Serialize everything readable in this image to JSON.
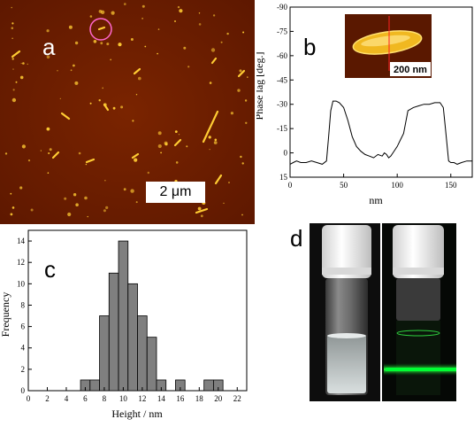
{
  "panels": {
    "a": {
      "letter": "a",
      "scale_bar": "2 μm"
    },
    "b": {
      "letter": "b",
      "inset_scale": "200 nm"
    },
    "c": {
      "letter": "c"
    },
    "d": {
      "letter": "d"
    }
  },
  "chart_data": [
    {
      "panel": "b",
      "type": "line",
      "xlabel": "nm",
      "ylabel": "Phase lag [deg.]",
      "xlim": [
        0,
        170
      ],
      "ylim": [
        15,
        -90
      ],
      "y_inverted": true,
      "x_ticks": [
        0,
        50,
        100,
        150
      ],
      "y_ticks": [
        -90,
        -75,
        -60,
        -45,
        -30,
        -15,
        0,
        15
      ],
      "x_tick_labels": [
        "0",
        "50",
        "100",
        "150"
      ],
      "y_tick_labels": [
        "-90",
        "-75",
        "-60",
        "-45",
        "-30",
        "-15",
        "0",
        "15"
      ],
      "x": [
        0,
        3,
        6,
        10,
        15,
        20,
        25,
        30,
        34,
        36,
        38,
        40,
        43,
        46,
        50,
        54,
        58,
        62,
        66,
        70,
        74,
        78,
        82,
        86,
        88,
        90,
        92,
        94,
        96,
        98,
        100,
        103,
        106,
        110,
        115,
        120,
        125,
        130,
        135,
        140,
        143,
        145,
        148,
        150,
        153,
        156,
        160,
        165,
        170
      ],
      "y": [
        7,
        6,
        5,
        6,
        6,
        5,
        6,
        7,
        5,
        -10,
        -26,
        -32,
        -32,
        -31,
        -28,
        -20,
        -10,
        -4,
        -1,
        1,
        2,
        3,
        1,
        2,
        0,
        1,
        3,
        2,
        0,
        -2,
        -4,
        -8,
        -12,
        -26,
        -28,
        -29,
        -30,
        -30,
        -31,
        -31,
        -28,
        -15,
        5,
        6,
        6,
        7,
        6,
        5,
        5
      ]
    },
    {
      "panel": "c",
      "type": "bar",
      "xlabel": "Height / nm",
      "ylabel": "Frequency",
      "xlim": [
        0,
        23
      ],
      "ylim": [
        0,
        15
      ],
      "x_ticks": [
        0,
        2,
        4,
        6,
        8,
        10,
        12,
        14,
        16,
        18,
        20,
        22
      ],
      "y_ticks": [
        0,
        2,
        4,
        6,
        8,
        10,
        12,
        14
      ],
      "x_tick_labels": [
        "0",
        "2",
        "4",
        "6",
        "8",
        "10",
        "12",
        "14",
        "16",
        "18",
        "20",
        "22"
      ],
      "y_tick_labels": [
        "0",
        "2",
        "4",
        "6",
        "8",
        "10",
        "12",
        "14"
      ],
      "bin_width": 1,
      "categories": [
        6,
        7,
        8,
        9,
        10,
        11,
        12,
        13,
        14,
        16,
        19,
        20
      ],
      "values": [
        1,
        1,
        7,
        11,
        14,
        10,
        7,
        5,
        1,
        1,
        1,
        1
      ],
      "bar_color": "#7f7f7f"
    }
  ],
  "colors": {
    "afm_background": "#6e1e00",
    "afm_particles": "#ffcc33",
    "circle_marker": "#ff66cc",
    "green_fluorescence": "#00ff33"
  }
}
